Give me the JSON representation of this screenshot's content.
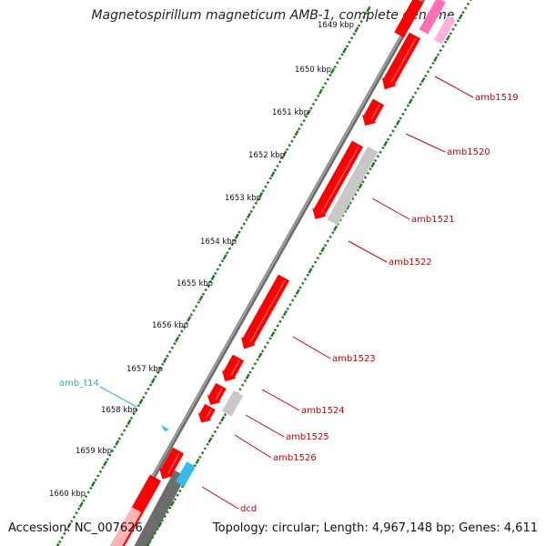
{
  "title": "Magnetospirillum magneticum AMB-1, complete genome",
  "footer": {
    "accession": "Accession: NC_007626",
    "summary": "Topology: circular; Length: 4,967,148 bp; Genes: 4,611"
  },
  "colors": {
    "gene_forward": "#ff0000",
    "gene_pseudo": "#c8c8c8",
    "trna": "#33bbee",
    "rrna": "#ff6fb5",
    "backbone": "#808080",
    "tick": "#1a7a1a",
    "label_gene": "#cc0000",
    "label_trna": "#33aadd",
    "label_kbp": "#111111"
  },
  "ruler": {
    "unit": "kbp",
    "labels": [
      "1649 kbp",
      "1650 kbp",
      "1651 kbp",
      "1652 kbp",
      "1653 kbp",
      "1654 kbp",
      "1655 kbp",
      "1656 kbp",
      "1657 kbp",
      "1658 kbp",
      "1659 kbp",
      "1660 kbp"
    ]
  },
  "genes": [
    {
      "name": "amb1519",
      "kind": "gene"
    },
    {
      "name": "amb1520",
      "kind": "gene"
    },
    {
      "name": "amb1521",
      "kind": "gene"
    },
    {
      "name": "amb1522",
      "kind": "pseudo"
    },
    {
      "name": "amb1523",
      "kind": "gene"
    },
    {
      "name": "amb1524",
      "kind": "gene"
    },
    {
      "name": "amb1525",
      "kind": "pseudo"
    },
    {
      "name": "amb1526",
      "kind": "gene"
    },
    {
      "name": "dcd",
      "kind": "gene"
    },
    {
      "name": "amb_t14",
      "kind": "trna"
    }
  ]
}
